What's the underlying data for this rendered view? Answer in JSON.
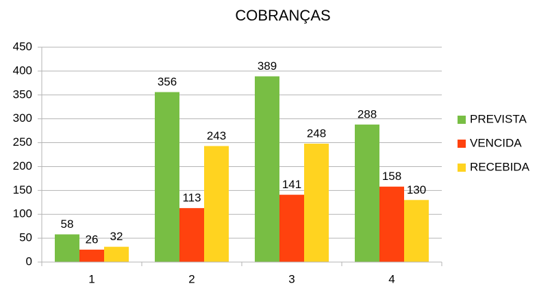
{
  "chart_data": {
    "type": "bar",
    "title": "COBRANÇAS",
    "categories": [
      "1",
      "2",
      "3",
      "4"
    ],
    "series": [
      {
        "name": "PREVISTA",
        "color": "#78be44",
        "values": [
          58,
          356,
          389,
          288
        ]
      },
      {
        "name": "VENCIDA",
        "color": "#ff420e",
        "values": [
          26,
          113,
          141,
          158
        ]
      },
      {
        "name": "RECEBIDA",
        "color": "#ffd320",
        "values": [
          32,
          243,
          248,
          130
        ]
      }
    ],
    "ylim": [
      0,
      450
    ],
    "yticks": [
      0,
      50,
      100,
      150,
      200,
      250,
      300,
      350,
      400,
      450
    ],
    "grid": true,
    "legend": "right"
  }
}
